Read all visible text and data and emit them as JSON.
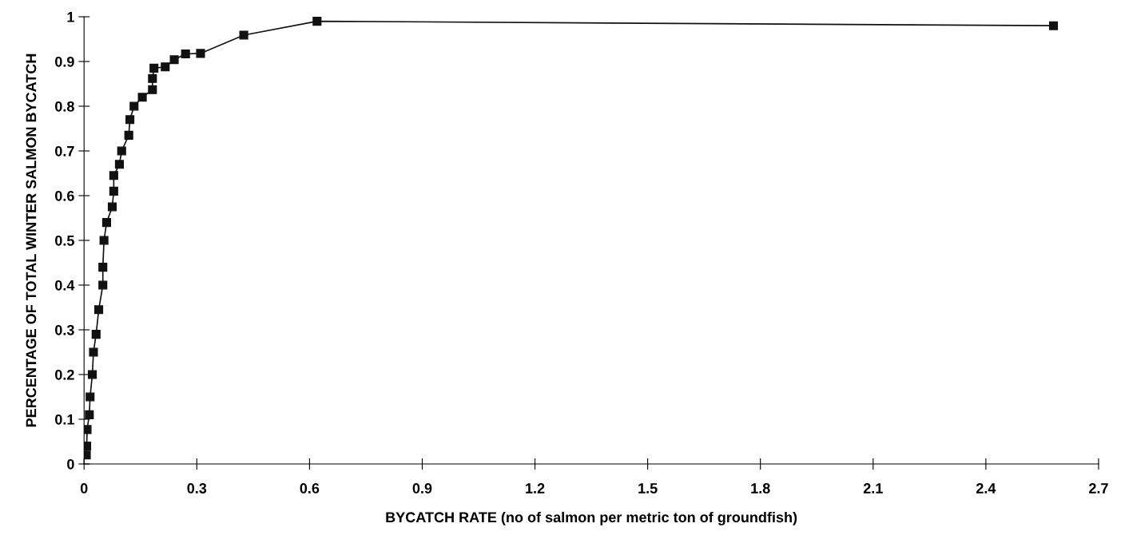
{
  "chart_data": {
    "type": "line",
    "xlabel": "BYCATCH RATE (no of salmon per metric ton of groundfish)",
    "ylabel": "PERCENTAGE OF TOTAL WINTER SALMON BYCATCH",
    "x": [
      0.006,
      0.007,
      0.008,
      0.014,
      0.016,
      0.022,
      0.025,
      0.032,
      0.039,
      0.05,
      0.05,
      0.053,
      0.06,
      0.075,
      0.079,
      0.079,
      0.094,
      0.1,
      0.119,
      0.122,
      0.133,
      0.155,
      0.182,
      0.182,
      0.186,
      0.216,
      0.24,
      0.27,
      0.31,
      0.425,
      0.62,
      2.58
    ],
    "series": [
      {
        "color": "#111111",
        "values": [
          0.02,
          0.04,
          0.077,
          0.11,
          0.15,
          0.2,
          0.25,
          0.29,
          0.345,
          0.4,
          0.44,
          0.5,
          0.54,
          0.575,
          0.61,
          0.645,
          0.67,
          0.7,
          0.735,
          0.77,
          0.8,
          0.82,
          0.837,
          0.862,
          0.885,
          0.888,
          0.904,
          0.917,
          0.918,
          0.959,
          0.99,
          0.98
        ]
      }
    ],
    "xlim": [
      0,
      2.7
    ],
    "xticks": [
      0,
      0.3,
      0.6,
      0.9,
      1.2,
      1.5,
      1.8,
      2.1,
      2.4,
      2.7
    ],
    "ylim": [
      0,
      1
    ],
    "yticks": [
      0,
      0.1,
      0.2,
      0.3,
      0.4,
      0.5,
      0.6,
      0.7,
      0.8,
      0.9,
      1
    ],
    "marker": "square",
    "line_style": "solid",
    "grid": false,
    "legend": false
  }
}
